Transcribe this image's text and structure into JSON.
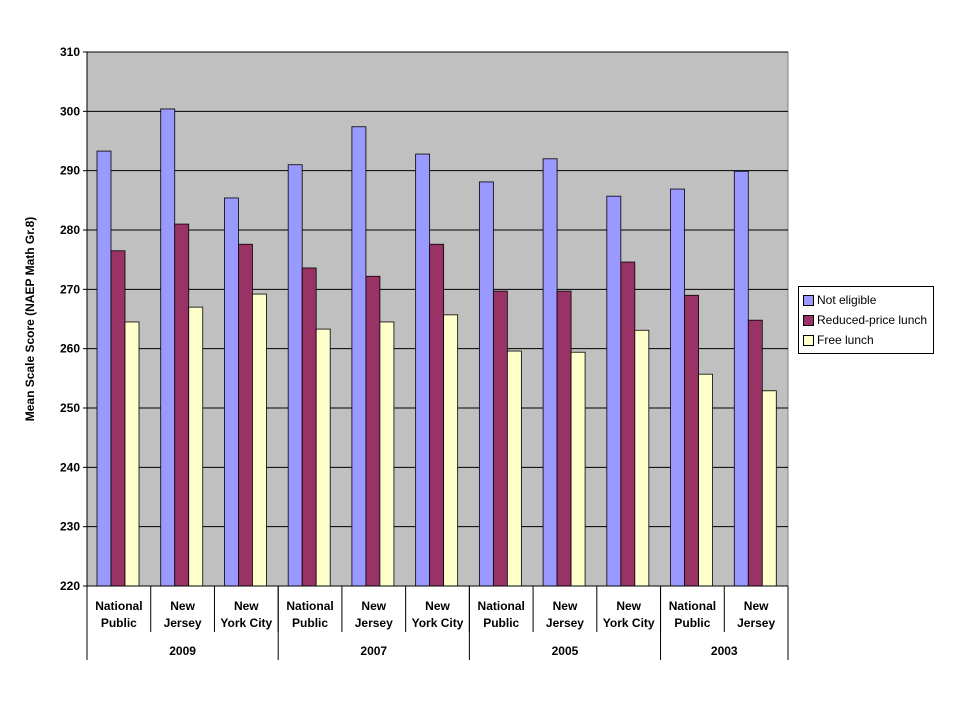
{
  "chart_data": {
    "type": "bar",
    "title": "",
    "xlabel": "",
    "ylabel": "Mean Scale Score (NAEP Math Gr.8)",
    "ylim": [
      220,
      310
    ],
    "yticks": [
      220,
      230,
      240,
      250,
      260,
      270,
      280,
      290,
      300,
      310
    ],
    "grid": true,
    "legend_position": "right",
    "categories": [
      [
        "National",
        "Public"
      ],
      [
        "New",
        "Jersey"
      ],
      [
        "New",
        "York City"
      ],
      [
        "National",
        "Public"
      ],
      [
        "New",
        "Jersey"
      ],
      [
        "New",
        "York City"
      ],
      [
        "National",
        "Public"
      ],
      [
        "New",
        "Jersey"
      ],
      [
        "New",
        "York City"
      ],
      [
        "National",
        "Public"
      ],
      [
        "New",
        "Jersey"
      ]
    ],
    "years": [
      {
        "label": "2009",
        "count": 3
      },
      {
        "label": "2007",
        "count": 3
      },
      {
        "label": "2005",
        "count": 3
      },
      {
        "label": "2003",
        "count": 2
      }
    ],
    "series": [
      {
        "name": "Not eligible",
        "color": "#9999FF",
        "values": [
          293.3,
          300.4,
          285.4,
          291.0,
          297.4,
          292.8,
          288.1,
          292.0,
          285.7,
          286.9,
          289.9
        ]
      },
      {
        "name": "Reduced-price lunch",
        "color": "#993366",
        "values": [
          276.5,
          281.0,
          277.6,
          273.6,
          272.2,
          277.6,
          269.7,
          269.7,
          274.6,
          269.0,
          264.8
        ]
      },
      {
        "name": "Free lunch",
        "color": "#FFFFCC",
        "values": [
          264.5,
          267.0,
          269.2,
          263.3,
          264.5,
          265.7,
          259.6,
          259.4,
          263.1,
          255.7,
          252.9
        ]
      }
    ]
  }
}
